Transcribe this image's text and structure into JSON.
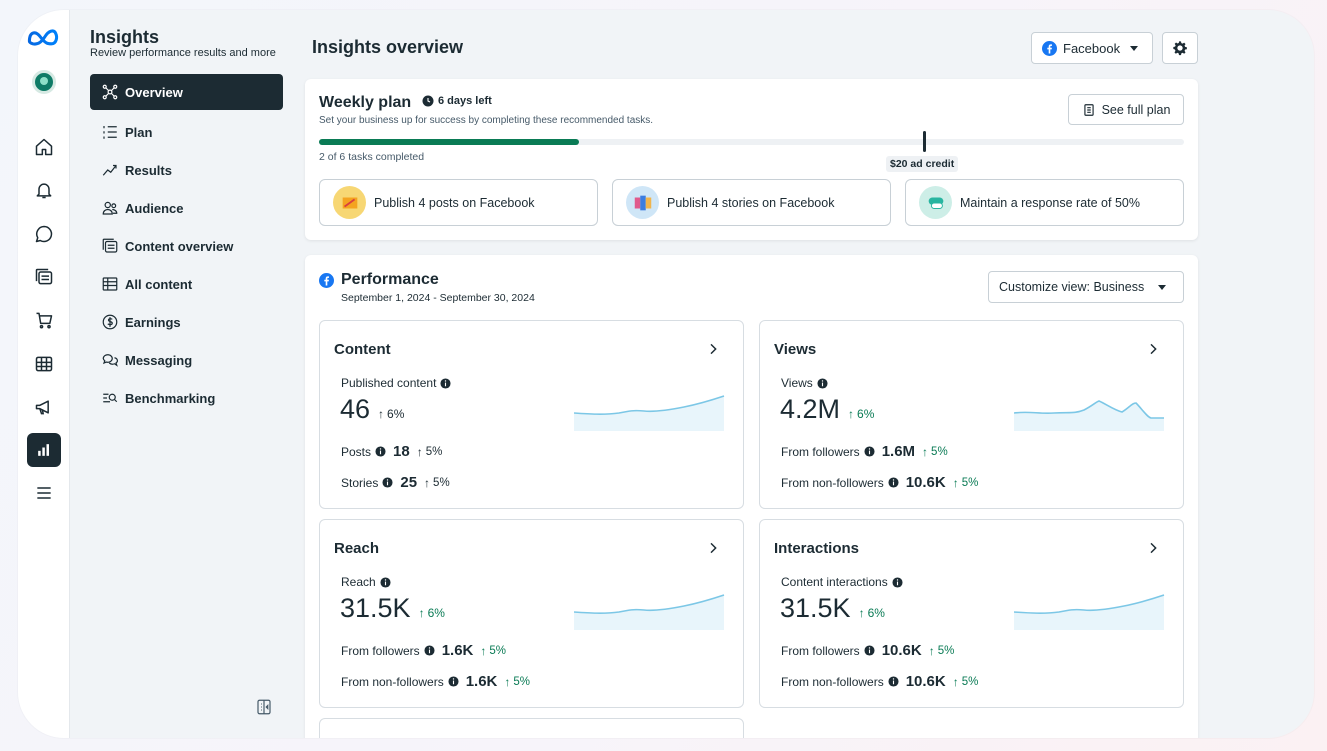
{
  "app": {
    "brand": "Meta",
    "section_title": "Insights",
    "section_subtitle": "Review performance results and more"
  },
  "nav": [
    {
      "label": "Overview",
      "icon": "overview-icon"
    },
    {
      "label": "Plan",
      "icon": "plan-icon"
    },
    {
      "label": "Results",
      "icon": "results-icon"
    },
    {
      "label": "Audience",
      "icon": "audience-icon"
    },
    {
      "label": "Content overview",
      "icon": "content-overview-icon"
    },
    {
      "label": "All content",
      "icon": "table-icon"
    },
    {
      "label": "Earnings",
      "icon": "dollar-icon"
    },
    {
      "label": "Messaging",
      "icon": "messaging-icon"
    },
    {
      "label": "Benchmarking",
      "icon": "benchmarking-icon"
    }
  ],
  "header": {
    "title": "Insights overview",
    "platform_select": "Facebook"
  },
  "weekly_plan": {
    "title": "Weekly plan",
    "days_left": "6 days left",
    "subtitle": "Set your business up for success by completing these recommended tasks.",
    "see_full_plan": "See full plan",
    "progress_text": "2 of 6 tasks completed",
    "progress_fraction": 0.3,
    "credit_label": "$20 ad credit",
    "tasks": [
      {
        "label": "Publish 4 posts on Facebook"
      },
      {
        "label": "Publish 4 stories on Facebook"
      },
      {
        "label": "Maintain a response rate of 50%"
      }
    ]
  },
  "performance": {
    "title": "Performance",
    "date_range": "September 1, 2024 - September 30, 2024",
    "customize_view": "Customize view: Business",
    "cards": {
      "content": {
        "title": "Content",
        "primary_label": "Published content",
        "primary_value": "46",
        "primary_delta": "6%",
        "rows": [
          {
            "label": "Posts",
            "value": "18",
            "delta": "5%"
          },
          {
            "label": "Stories",
            "value": "25",
            "delta": "5%"
          }
        ]
      },
      "views": {
        "title": "Views",
        "primary_label": "Views",
        "primary_value": "4.2M",
        "primary_delta": "6%",
        "rows": [
          {
            "label": "From followers",
            "value": "1.6M",
            "delta": "5%"
          },
          {
            "label": "From non-followers",
            "value": "10.6K",
            "delta": "5%"
          }
        ]
      },
      "reach": {
        "title": "Reach",
        "primary_label": "Reach",
        "primary_value": "31.5K",
        "primary_delta": "6%",
        "rows": [
          {
            "label": "From followers",
            "value": "1.6K",
            "delta": "5%"
          },
          {
            "label": "From non-followers",
            "value": "1.6K",
            "delta": "5%"
          }
        ]
      },
      "interactions": {
        "title": "Interactions",
        "primary_label": "Content interactions",
        "primary_value": "31.5K",
        "primary_delta": "6%",
        "rows": [
          {
            "label": "From followers",
            "value": "10.6K",
            "delta": "5%"
          },
          {
            "label": "From non-followers",
            "value": "10.6K",
            "delta": "5%"
          }
        ]
      }
    }
  },
  "colors": {
    "brand_dark": "#1c2b33",
    "positive": "#0a7b55",
    "progress": "#0a7b55",
    "facebook_blue": "#1877f2",
    "sparkline": "#7cc7e6"
  }
}
